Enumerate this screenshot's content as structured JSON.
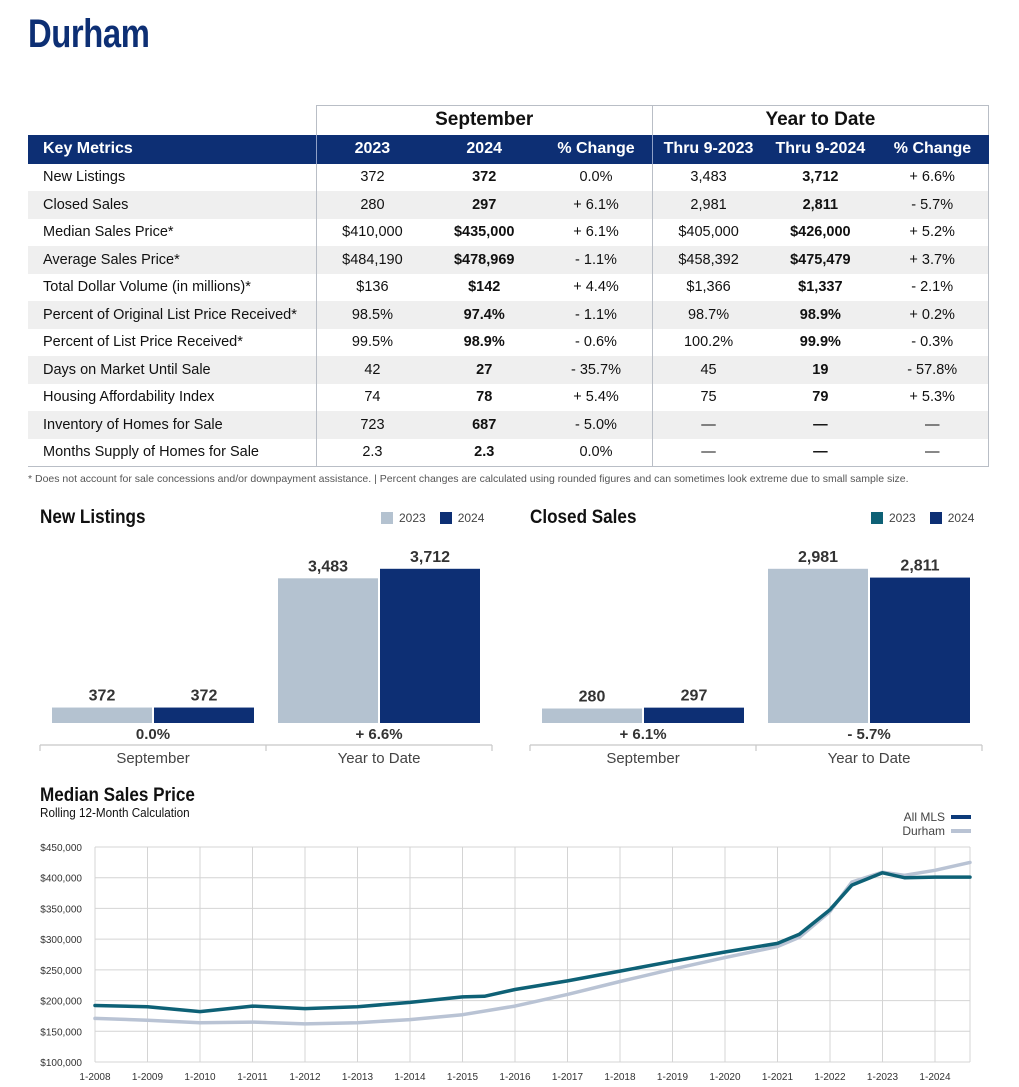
{
  "title": "Durham",
  "table": {
    "group_headers": [
      "September",
      "Year to Date"
    ],
    "columns": [
      "Key Metrics",
      "2023",
      "2024",
      "% Change",
      "Thru 9-2023",
      "Thru 9-2024",
      "% Change"
    ],
    "rows": [
      [
        "New Listings",
        "372",
        "372",
        "0.0%",
        "3,483",
        "3,712",
        "+ 6.6%"
      ],
      [
        "Closed Sales",
        "280",
        "297",
        "+ 6.1%",
        "2,981",
        "2,811",
        "- 5.7%"
      ],
      [
        "Median Sales Price*",
        "$410,000",
        "$435,000",
        "+ 6.1%",
        "$405,000",
        "$426,000",
        "+ 5.2%"
      ],
      [
        "Average Sales Price*",
        "$484,190",
        "$478,969",
        "- 1.1%",
        "$458,392",
        "$475,479",
        "+ 3.7%"
      ],
      [
        "Total Dollar Volume (in millions)*",
        "$136",
        "$142",
        "+ 4.4%",
        "$1,366",
        "$1,337",
        "- 2.1%"
      ],
      [
        "Percent of Original List Price Received*",
        "98.5%",
        "97.4%",
        "- 1.1%",
        "98.7%",
        "98.9%",
        "+ 0.2%"
      ],
      [
        "Percent of List Price Received*",
        "99.5%",
        "98.9%",
        "- 0.6%",
        "100.2%",
        "99.9%",
        "- 0.3%"
      ],
      [
        "Days on Market Until Sale",
        "42",
        "27",
        "- 35.7%",
        "45",
        "19",
        "- 57.8%"
      ],
      [
        "Housing Affordability Index",
        "74",
        "78",
        "+ 5.4%",
        "75",
        "79",
        "+ 5.3%"
      ],
      [
        "Inventory of Homes for Sale",
        "723",
        "687",
        "- 5.0%",
        "—",
        "—",
        "—"
      ],
      [
        "Months Supply of Homes for Sale",
        "2.3",
        "2.3",
        "0.0%",
        "—",
        "—",
        "—"
      ]
    ]
  },
  "footnote": "* Does not account for sale concessions and/or downpayment assistance. | Percent changes are calculated using rounded figures and can sometimes look extreme due to small sample size.",
  "colors": {
    "navy": "#0d2f74",
    "light_bar": "#b4c2d0",
    "teal": "#0e6176",
    "durham_line": "#b9c3d4",
    "all_mls_line": "#0d3b7a",
    "grid": "#d4d4d4"
  },
  "chart_data": [
    {
      "type": "bar",
      "title": "New Listings",
      "categories": [
        "September",
        "Year to Date"
      ],
      "series": [
        {
          "name": "2023",
          "values": [
            372,
            3483
          ],
          "labels": [
            "372",
            "3,483"
          ]
        },
        {
          "name": "2024",
          "values": [
            372,
            3712
          ],
          "labels": [
            "372",
            "3,712"
          ]
        }
      ],
      "change_labels": [
        "0.0%",
        "+ 6.6%"
      ],
      "legend_colors": [
        "#b4c2d0",
        "#0d2f74"
      ]
    },
    {
      "type": "bar",
      "title": "Closed Sales",
      "categories": [
        "September",
        "Year to Date"
      ],
      "series": [
        {
          "name": "2023",
          "values": [
            280,
            2981
          ],
          "labels": [
            "280",
            "2,981"
          ]
        },
        {
          "name": "2024",
          "values": [
            297,
            2811
          ],
          "labels": [
            "297",
            "2,811"
          ]
        }
      ],
      "change_labels": [
        "+ 6.1%",
        "- 5.7%"
      ],
      "legend_colors": [
        "#0e6176",
        "#0d2f74"
      ]
    },
    {
      "type": "line",
      "title": "Median Sales Price",
      "subtitle": "Rolling 12-Month Calculation",
      "xlabels": [
        "1-2008",
        "1-2009",
        "1-2010",
        "1-2011",
        "1-2012",
        "1-2013",
        "1-2014",
        "1-2015",
        "1-2016",
        "1-2017",
        "1-2018",
        "1-2019",
        "1-2020",
        "1-2021",
        "1-2022",
        "1-2023",
        "1-2024"
      ],
      "ylim": [
        100000,
        450000
      ],
      "yticks": [
        100000,
        150000,
        200000,
        250000,
        300000,
        350000,
        400000,
        450000
      ],
      "ytick_labels": [
        "$100,000",
        "$150,000",
        "$200,000",
        "$250,000",
        "$300,000",
        "$350,000",
        "$400,000",
        "$450,000"
      ],
      "x_start": "2008-01",
      "x_end": "2024-09",
      "grid": true,
      "legend_position": "top-right",
      "series": [
        {
          "name": "All MLS",
          "x": [
            "2008-01",
            "2009-01",
            "2010-01",
            "2011-01",
            "2012-01",
            "2013-01",
            "2014-01",
            "2015-01",
            "2015-06",
            "2016-01",
            "2017-01",
            "2018-01",
            "2019-01",
            "2020-01",
            "2021-01",
            "2021-06",
            "2022-01",
            "2022-06",
            "2023-01",
            "2023-06",
            "2024-01",
            "2024-09"
          ],
          "y": [
            192000,
            190000,
            182000,
            191000,
            187000,
            190000,
            197000,
            206000,
            207000,
            218000,
            232000,
            248000,
            264000,
            279000,
            293000,
            308000,
            348000,
            388000,
            408000,
            400000,
            401000,
            401000
          ]
        },
        {
          "name": "Durham",
          "x": [
            "2008-01",
            "2009-01",
            "2010-01",
            "2011-01",
            "2012-01",
            "2013-01",
            "2014-01",
            "2015-01",
            "2016-01",
            "2017-01",
            "2018-01",
            "2019-01",
            "2020-01",
            "2021-01",
            "2021-06",
            "2022-01",
            "2022-06",
            "2023-01",
            "2023-06",
            "2024-01",
            "2024-09"
          ],
          "y": [
            171000,
            168000,
            164000,
            165000,
            162000,
            164000,
            169000,
            177000,
            191000,
            210000,
            231000,
            251000,
            270000,
            288000,
            303000,
            345000,
            393000,
            409000,
            404000,
            412000,
            425000
          ]
        }
      ]
    }
  ]
}
